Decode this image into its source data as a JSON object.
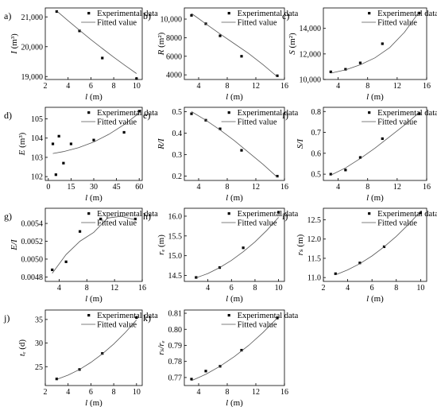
{
  "chart_data": [
    {
      "id": "a",
      "type": "scatter",
      "panel_label": "a)",
      "xlabel": "l (m)",
      "ylabel": "I (m³)",
      "xlim": [
        2,
        10.5
      ],
      "ylim": [
        18900,
        21300
      ],
      "xticks": [
        "2",
        "4",
        "6",
        "8",
        "10"
      ],
      "xtick_values": [
        2,
        4,
        6,
        8,
        10
      ],
      "yticks": [
        "19,000",
        "20,000",
        "21,000"
      ],
      "ytick_values": [
        19000,
        20000,
        21000
      ],
      "legend": [
        "Experimental data",
        "Fitted value"
      ],
      "legend_position": "top-right",
      "series": [
        {
          "name": "Experimental data",
          "kind": "points",
          "x": [
            3,
            5,
            7,
            10
          ],
          "y": [
            21180,
            20530,
            19620,
            18930
          ]
        },
        {
          "name": "Fitted value",
          "kind": "line",
          "x": [
            3,
            4,
            5,
            6,
            7,
            8,
            9,
            10
          ],
          "y": [
            21200,
            20870,
            20550,
            20240,
            19940,
            19650,
            19370,
            19100
          ]
        }
      ]
    },
    {
      "id": "b",
      "type": "scatter",
      "panel_label": "b)",
      "xlabel": "l (m)",
      "ylabel": "R (m²)",
      "xlim": [
        2,
        16
      ],
      "ylim": [
        3500,
        11200
      ],
      "xticks": [
        "4",
        "8",
        "12",
        "16"
      ],
      "xtick_values": [
        4,
        8,
        12,
        16
      ],
      "yticks": [
        "4000",
        "6000",
        "8000",
        "10,000"
      ],
      "ytick_values": [
        4000,
        6000,
        8000,
        10000
      ],
      "legend": [
        "Experimental data",
        "Fitted value"
      ],
      "legend_position": "top-right",
      "series": [
        {
          "name": "Experimental data",
          "kind": "points",
          "x": [
            3,
            5,
            7,
            10,
            15
          ],
          "y": [
            10400,
            9500,
            8200,
            6000,
            3900
          ]
        },
        {
          "name": "Fitted value",
          "kind": "line",
          "x": [
            3,
            5,
            7,
            9,
            11,
            13,
            15
          ],
          "y": [
            10600,
            9500,
            8400,
            7350,
            6300,
            5100,
            3800
          ]
        }
      ]
    },
    {
      "id": "c",
      "type": "scatter",
      "panel_label": "c)",
      "xlabel": "l (m)",
      "ylabel": "S (m²)",
      "xlim": [
        2,
        16
      ],
      "ylim": [
        10000,
        15600
      ],
      "xticks": [
        "4",
        "8",
        "12",
        "16"
      ],
      "xtick_values": [
        4,
        8,
        12,
        16
      ],
      "yticks": [
        "10,000",
        "12,000",
        "14,000"
      ],
      "ytick_values": [
        10000,
        12000,
        14000
      ],
      "legend": [
        "Experimental data",
        "Fitted value"
      ],
      "legend_position": "top-right",
      "series": [
        {
          "name": "Experimental data",
          "kind": "points",
          "x": [
            3,
            5,
            7,
            10,
            15
          ],
          "y": [
            10600,
            10800,
            11300,
            12800,
            15200
          ]
        },
        {
          "name": "Fitted value",
          "kind": "line",
          "x": [
            3,
            5,
            7,
            9,
            11,
            13,
            15
          ],
          "y": [
            10500,
            10750,
            11150,
            11700,
            12500,
            13700,
            15300
          ]
        }
      ]
    },
    {
      "id": "d",
      "type": "scatter",
      "panel_label": "d)",
      "xlabel": "l (m)",
      "ylabel": "E (m³)",
      "xlim": [
        -2,
        62
      ],
      "ylim": [
        101.8,
        105.6
      ],
      "xticks": [
        "0",
        "15",
        "30",
        "45",
        "60"
      ],
      "xtick_values": [
        0,
        15,
        30,
        45,
        60
      ],
      "yticks": [
        "102",
        "103",
        "104",
        "105"
      ],
      "ytick_values": [
        102,
        103,
        104,
        105
      ],
      "legend": [
        "Experimental data",
        "Fitted value"
      ],
      "legend_position": "top-right",
      "series": [
        {
          "name": "Experimental data",
          "kind": "points",
          "x": [
            3,
            5,
            7,
            10,
            15,
            30,
            50,
            60
          ],
          "y": [
            103.7,
            102.1,
            104.1,
            102.7,
            103.7,
            103.9,
            104.3,
            105.4
          ]
        },
        {
          "name": "Fitted value",
          "kind": "line",
          "x": [
            3,
            10,
            20,
            30,
            40,
            50,
            60
          ],
          "y": [
            103.2,
            103.3,
            103.5,
            103.8,
            104.2,
            104.7,
            105.3
          ]
        }
      ]
    },
    {
      "id": "e",
      "type": "scatter",
      "panel_label": "e)",
      "xlabel": "l (m)",
      "ylabel": "R/I",
      "xlim": [
        2,
        16
      ],
      "ylim": [
        0.18,
        0.52
      ],
      "xticks": [
        "4",
        "8",
        "12",
        "16"
      ],
      "xtick_values": [
        4,
        8,
        12,
        16
      ],
      "yticks": [
        "0.2",
        "0.3",
        "0.4",
        "0.5"
      ],
      "ytick_values": [
        0.2,
        0.3,
        0.4,
        0.5
      ],
      "legend": [
        "Experimental data",
        "Fitted value"
      ],
      "legend_position": "top-right",
      "series": [
        {
          "name": "Experimental data",
          "kind": "points",
          "x": [
            3,
            5,
            7,
            10,
            15
          ],
          "y": [
            0.49,
            0.46,
            0.42,
            0.32,
            0.2
          ]
        },
        {
          "name": "Fitted value",
          "kind": "line",
          "x": [
            3,
            5,
            7,
            9,
            11,
            13,
            15
          ],
          "y": [
            0.5,
            0.46,
            0.415,
            0.365,
            0.31,
            0.255,
            0.195
          ]
        }
      ]
    },
    {
      "id": "f",
      "type": "scatter",
      "panel_label": "f)",
      "xlabel": "l (m)",
      "ylabel": "S/I",
      "xlim": [
        2,
        16
      ],
      "ylim": [
        0.47,
        0.82
      ],
      "xticks": [
        "4",
        "8",
        "12",
        "16"
      ],
      "xtick_values": [
        4,
        8,
        12,
        16
      ],
      "yticks": [
        "0.5",
        "0.6",
        "0.7",
        "0.8"
      ],
      "ytick_values": [
        0.5,
        0.6,
        0.7,
        0.8
      ],
      "legend": [
        "Experimental data",
        "Fitted value"
      ],
      "legend_position": "top-right",
      "series": [
        {
          "name": "Experimental data",
          "kind": "points",
          "x": [
            3,
            5,
            7,
            10,
            15
          ],
          "y": [
            0.5,
            0.52,
            0.58,
            0.67,
            0.79
          ]
        },
        {
          "name": "Fitted value",
          "kind": "line",
          "x": [
            3,
            5,
            7,
            9,
            11,
            13,
            15
          ],
          "y": [
            0.495,
            0.53,
            0.575,
            0.625,
            0.68,
            0.735,
            0.795
          ]
        }
      ]
    },
    {
      "id": "g",
      "type": "scatter",
      "panel_label": "g)",
      "xlabel": "l (m)",
      "ylabel": "E/I",
      "xlim": [
        2,
        16
      ],
      "ylim": [
        0.00475,
        0.00557
      ],
      "xticks": [
        "4",
        "8",
        "12",
        "16"
      ],
      "xtick_values": [
        4,
        8,
        12,
        16
      ],
      "yticks": [
        "0.0048",
        "0.0050",
        "0.0052",
        "0.0054"
      ],
      "ytick_values": [
        0.0048,
        0.005,
        0.0052,
        0.0054
      ],
      "legend": [
        "Experimental data",
        "Fitted value"
      ],
      "legend_position": "top-right",
      "series": [
        {
          "name": "Experimental data",
          "kind": "points",
          "x": [
            3,
            5,
            7,
            10,
            15
          ],
          "y": [
            0.00488,
            0.00497,
            0.00531,
            0.00545,
            0.00545
          ]
        },
        {
          "name": "Fitted value",
          "kind": "line",
          "x": [
            3,
            5,
            7,
            9,
            11,
            13,
            15
          ],
          "y": [
            0.00484,
            0.00505,
            0.0052,
            0.0053,
            0.00546,
            0.00548,
            0.00544
          ]
        }
      ]
    },
    {
      "id": "h",
      "type": "scatter",
      "panel_label": "h)",
      "xlabel": "l (m)",
      "ylabel": "rₑ (m)",
      "xlim": [
        2,
        10.5
      ],
      "ylim": [
        14.35,
        16.2
      ],
      "xticks": [
        "4",
        "6",
        "8",
        "10"
      ],
      "xtick_values": [
        4,
        6,
        8,
        10
      ],
      "yticks": [
        "14.5",
        "15.0",
        "15.5",
        "16.0"
      ],
      "ytick_values": [
        14.5,
        15,
        15.5,
        16
      ],
      "legend": [
        "Experimental data",
        "Fitted value"
      ],
      "legend_position": "top-right",
      "series": [
        {
          "name": "Experimental data",
          "kind": "points",
          "x": [
            3,
            5,
            7,
            10
          ],
          "y": [
            14.45,
            14.7,
            15.2,
            16.1
          ]
        },
        {
          "name": "Fitted value",
          "kind": "line",
          "x": [
            3,
            4,
            5,
            6,
            7,
            8,
            9,
            10
          ],
          "y": [
            14.44,
            14.55,
            14.7,
            14.88,
            15.1,
            15.35,
            15.64,
            15.97
          ]
        }
      ]
    },
    {
      "id": "i",
      "type": "scatter",
      "panel_label": "i)",
      "xlabel": "l (m)",
      "ylabel": "rₛ (m)",
      "xlim": [
        2,
        10.5
      ],
      "ylim": [
        10.9,
        12.8
      ],
      "xticks": [
        "2",
        "4",
        "6",
        "8",
        "10"
      ],
      "xtick_values": [
        2,
        4,
        6,
        8,
        10
      ],
      "yticks": [
        "11.0",
        "11.5",
        "12.0",
        "12.5"
      ],
      "ytick_values": [
        11,
        11.5,
        12,
        12.5
      ],
      "legend": [
        "Experimental data",
        "Fitted value"
      ],
      "legend_position": "top-right",
      "series": [
        {
          "name": "Experimental data",
          "kind": "points",
          "x": [
            3,
            5,
            7,
            10
          ],
          "y": [
            11.1,
            11.38,
            11.8,
            12.68
          ]
        },
        {
          "name": "Fitted value",
          "kind": "line",
          "x": [
            3,
            4,
            5,
            6,
            7,
            8,
            9,
            10
          ],
          "y": [
            11.07,
            11.2,
            11.36,
            11.56,
            11.8,
            12.07,
            12.38,
            12.72
          ]
        }
      ]
    },
    {
      "id": "j",
      "type": "scatter",
      "panel_label": "j)",
      "xlabel": "l (m)",
      "ylabel": "tᵣ (d)",
      "xlim": [
        2,
        10.5
      ],
      "ylim": [
        21,
        37
      ],
      "xticks": [
        "2",
        "4",
        "6",
        "8",
        "10"
      ],
      "xtick_values": [
        2,
        4,
        6,
        8,
        10
      ],
      "yticks": [
        "25",
        "30",
        "35"
      ],
      "ytick_values": [
        25,
        30,
        35
      ],
      "legend": [
        "Experimental data",
        "Fitted value"
      ],
      "legend_position": "top-right",
      "series": [
        {
          "name": "Experimental data",
          "kind": "points",
          "x": [
            3,
            5,
            7,
            10
          ],
          "y": [
            22.4,
            24.4,
            27.8,
            35.4
          ]
        },
        {
          "name": "Fitted value",
          "kind": "line",
          "x": [
            3,
            4,
            5,
            6,
            7,
            8,
            9,
            10
          ],
          "y": [
            22.3,
            23.2,
            24.4,
            25.9,
            27.7,
            29.8,
            32.2,
            34.9
          ]
        }
      ]
    },
    {
      "id": "k",
      "type": "scatter",
      "panel_label": "k)",
      "xlabel": "l (m)",
      "ylabel": "rₛ/rₑ",
      "xlim": [
        2,
        16
      ],
      "ylim": [
        0.765,
        0.812
      ],
      "xticks": [
        "4",
        "8",
        "12",
        "16"
      ],
      "xtick_values": [
        4,
        8,
        12,
        16
      ],
      "yticks": [
        "0.77",
        "0.78",
        "0.79",
        "0.80",
        "0.81"
      ],
      "ytick_values": [
        0.77,
        0.78,
        0.79,
        0.8,
        0.81
      ],
      "legend": [
        "Experimental data",
        "Fitted value"
      ],
      "legend_position": "top-right",
      "series": [
        {
          "name": "Experimental data",
          "kind": "points",
          "x": [
            3,
            5,
            7,
            10,
            15
          ],
          "y": [
            0.769,
            0.774,
            0.777,
            0.787,
            0.807
          ]
        },
        {
          "name": "Fitted value",
          "kind": "line",
          "x": [
            3,
            5,
            7,
            9,
            11,
            13,
            15
          ],
          "y": [
            0.768,
            0.772,
            0.777,
            0.783,
            0.79,
            0.798,
            0.807
          ]
        }
      ]
    }
  ]
}
